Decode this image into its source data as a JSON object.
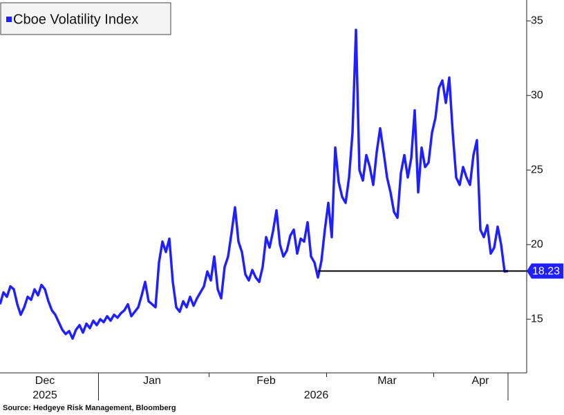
{
  "chart_data": {
    "type": "line",
    "legend_title": "Cboe Volatility Index",
    "source": "Source: Hedgeye Risk Management, Bloomberg",
    "categories": [
      null,
      null,
      null,
      null,
      null,
      null,
      null,
      null,
      null,
      null,
      null,
      null,
      null,
      "Dec",
      null,
      null,
      null,
      null,
      null,
      null,
      null,
      null,
      null,
      null,
      null,
      null,
      null,
      null,
      null,
      null,
      null,
      null,
      null,
      null,
      null,
      null,
      null,
      null,
      null,
      null,
      null,
      null,
      null,
      null,
      "Jan",
      null,
      null,
      null,
      null,
      null,
      null,
      null,
      null,
      null,
      null,
      null,
      null,
      null,
      null,
      null,
      null,
      null,
      null,
      null,
      null,
      null,
      null,
      null,
      null,
      null,
      null,
      null,
      null,
      null,
      null,
      null,
      null,
      "Feb",
      null,
      null,
      null,
      null,
      null,
      null,
      null,
      null,
      null,
      null,
      null,
      null,
      null,
      null,
      null,
      null,
      null,
      null,
      null,
      null,
      null,
      null,
      null,
      null,
      null,
      null,
      null,
      null,
      null,
      null,
      null,
      null,
      null,
      null,
      "Mar",
      null,
      null,
      null,
      null,
      null,
      null,
      null,
      null,
      null,
      null,
      null,
      null,
      null,
      null,
      null,
      null,
      null,
      null,
      null,
      null,
      null,
      null,
      null,
      null,
      null,
      null,
      "Apr",
      null,
      null,
      null,
      null,
      null,
      null,
      null,
      null
    ],
    "x_years": [
      "2025",
      "2026"
    ],
    "series": [
      {
        "name": "Cboe Volatility Index",
        "color": "#1f1fff",
        "values": [
          16.0,
          16.8,
          16.5,
          17.2,
          17.0,
          16.0,
          15.3,
          15.8,
          16.5,
          16.3,
          17.0,
          16.6,
          17.3,
          17.0,
          16.2,
          15.6,
          15.3,
          14.8,
          14.3,
          14.0,
          14.2,
          13.7,
          14.3,
          14.6,
          14.1,
          14.7,
          14.4,
          14.9,
          14.6,
          15.0,
          14.8,
          15.2,
          14.9,
          15.3,
          15.1,
          15.4,
          15.6,
          16.0,
          15.2,
          15.5,
          15.8,
          16.6,
          17.5,
          16.2,
          16.0,
          15.8,
          18.8,
          20.2,
          19.5,
          20.4,
          17.5,
          15.8,
          15.5,
          16.2,
          15.8,
          16.5,
          15.9,
          16.4,
          16.8,
          17.2,
          18.2,
          17.6,
          19.2,
          17.0,
          16.4,
          18.5,
          19.2,
          20.8,
          22.5,
          20.2,
          19.5,
          18.0,
          17.6,
          18.3,
          17.8,
          17.5,
          18.5,
          20.5,
          19.8,
          20.9,
          22.3,
          20.0,
          19.2,
          19.6,
          20.6,
          21.0,
          19.4,
          20.4,
          20.2,
          21.5,
          19.2,
          18.8,
          17.8,
          18.9,
          21.0,
          22.8,
          20.5,
          26.5,
          24.2,
          23.2,
          22.8,
          24.5,
          27.5,
          34.4,
          25.0,
          24.3,
          26.0,
          25.2,
          24.0,
          26.2,
          27.8,
          26.2,
          24.5,
          23.5,
          22.2,
          21.8,
          24.8,
          26.0,
          24.5,
          25.8,
          29.0,
          23.5,
          26.5,
          25.2,
          25.5,
          27.5,
          28.5,
          30.5,
          31.0,
          29.5,
          31.2,
          27.5,
          24.5,
          24.0,
          25.2,
          24.5,
          24.0,
          26.0,
          27.0,
          21.0,
          20.5,
          21.3,
          19.4,
          19.8,
          21.2,
          20.0,
          18.2,
          18.23
        ]
      }
    ],
    "last_value": 18.23,
    "ylim": [
      11.4,
      36.4
    ],
    "yticks": [
      15,
      20,
      25,
      30,
      35
    ]
  }
}
